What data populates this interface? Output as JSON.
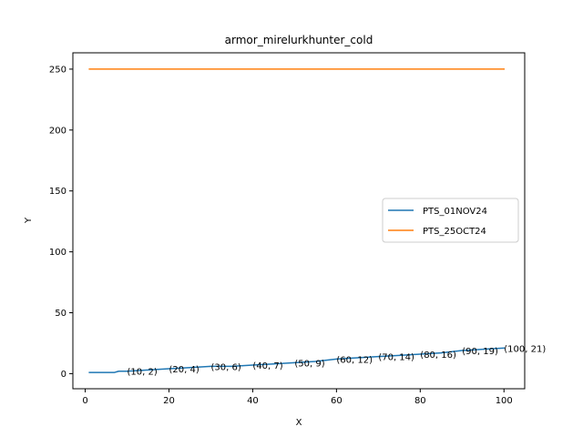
{
  "chart_data": {
    "type": "line",
    "title": "armor_mirelurkhunter_cold",
    "xlabel": "X",
    "ylabel": "Y",
    "xlim": [
      -2.95,
      104.95
    ],
    "ylim": [
      -12.4,
      263.4
    ],
    "xticks": [
      0,
      20,
      40,
      60,
      80,
      100
    ],
    "yticks": [
      0,
      50,
      100,
      150,
      200,
      250
    ],
    "grid": false,
    "legend_position": "center-right",
    "series": [
      {
        "name": "PTS_01NOV24",
        "color": "#1f77b4",
        "x": [
          1,
          2,
          3,
          4,
          5,
          6,
          7,
          8,
          9,
          10,
          15,
          20,
          25,
          30,
          35,
          40,
          45,
          50,
          55,
          60,
          65,
          70,
          75,
          80,
          85,
          90,
          95,
          100
        ],
        "y": [
          1,
          1,
          1,
          1,
          1,
          1,
          1,
          2,
          2,
          2,
          3,
          4,
          5,
          6,
          6,
          7,
          8,
          9,
          10,
          12,
          13,
          14,
          15,
          16,
          17,
          19,
          20,
          21
        ]
      },
      {
        "name": "PTS_25OCT24",
        "color": "#ff7f0e",
        "x": [
          1,
          100
        ],
        "y": [
          250,
          250
        ]
      }
    ],
    "annotations": [
      {
        "x": 10,
        "y": 2,
        "text": "(10, 2)"
      },
      {
        "x": 20,
        "y": 4,
        "text": "(20, 4)"
      },
      {
        "x": 30,
        "y": 6,
        "text": "(30, 6)"
      },
      {
        "x": 40,
        "y": 7,
        "text": "(40, 7)"
      },
      {
        "x": 50,
        "y": 9,
        "text": "(50, 9)"
      },
      {
        "x": 60,
        "y": 12,
        "text": "(60, 12)"
      },
      {
        "x": 70,
        "y": 14,
        "text": "(70, 14)"
      },
      {
        "x": 80,
        "y": 16,
        "text": "(80, 16)"
      },
      {
        "x": 90,
        "y": 19,
        "text": "(90, 19)"
      },
      {
        "x": 100,
        "y": 21,
        "text": "(100, 21)"
      }
    ]
  }
}
